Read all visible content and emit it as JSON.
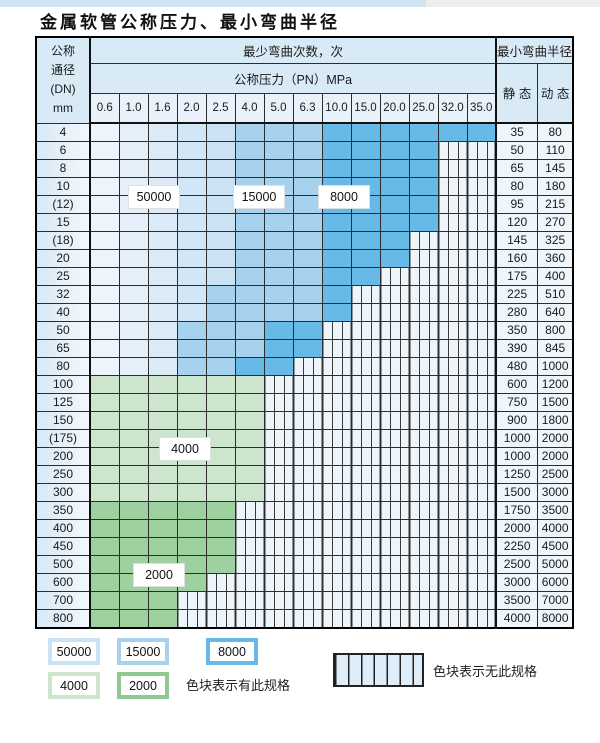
{
  "page": {
    "title": "金属软管公称压力、最小弯曲半径"
  },
  "table": {
    "header": {
      "dn": [
        "公称",
        "通径",
        "(DN)",
        "mm"
      ],
      "bend_cycles": "最少弯曲次数，次",
      "pressure": "公称压力（PN）MPa",
      "radius": "最小弯曲半径",
      "static": "静 态",
      "dynamic": "动 态",
      "pressures": [
        "0.6",
        "1.0",
        "1.6",
        "2.0",
        "2.5",
        "4.0",
        "5.0",
        "6.3",
        "10.0",
        "15.0",
        "20.0",
        "25.0",
        "32.0",
        "35.0"
      ]
    },
    "rows": [
      {
        "dn": "4",
        "pattern": "LLLLLMMMDDDDDD",
        "static": "35",
        "dynamic": "80"
      },
      {
        "dn": "6",
        "pattern": "LLLLLMMMDDDD..",
        "static": "50",
        "dynamic": "110"
      },
      {
        "dn": "8",
        "pattern": "LLLLLMMMDDDD..",
        "static": "65",
        "dynamic": "145"
      },
      {
        "dn": "10",
        "pattern": "LLLLLMMMDDDD..",
        "static": "80",
        "dynamic": "180"
      },
      {
        "dn": "(12)",
        "pattern": "LLLLLMMMDDDD..",
        "static": "95",
        "dynamic": "215"
      },
      {
        "dn": "15",
        "pattern": "LLLLLMMMDDDD..",
        "static": "120",
        "dynamic": "270"
      },
      {
        "dn": "(18)",
        "pattern": "LLLLLMMMDDD...",
        "static": "145",
        "dynamic": "325"
      },
      {
        "dn": "20",
        "pattern": "LLLLLMMMDDD...",
        "static": "160",
        "dynamic": "360"
      },
      {
        "dn": "25",
        "pattern": "LLLLLMMMDD....",
        "static": "175",
        "dynamic": "400"
      },
      {
        "dn": "32",
        "pattern": "LLLLMMMMD.....",
        "static": "225",
        "dynamic": "510"
      },
      {
        "dn": "40",
        "pattern": "LLLLMMMMD.....",
        "static": "280",
        "dynamic": "640"
      },
      {
        "dn": "50",
        "pattern": "LLLMMMDD......",
        "static": "350",
        "dynamic": "800"
      },
      {
        "dn": "65",
        "pattern": "LLLMMMDD......",
        "static": "390",
        "dynamic": "845"
      },
      {
        "dn": "80",
        "pattern": "LLLMMDD.......",
        "static": "480",
        "dynamic": "1000"
      },
      {
        "dn": "100",
        "pattern": "GGGGGG........",
        "static": "600",
        "dynamic": "1200"
      },
      {
        "dn": "125",
        "pattern": "GGGGGG........",
        "static": "750",
        "dynamic": "1500"
      },
      {
        "dn": "150",
        "pattern": "GGGGGG........",
        "static": "900",
        "dynamic": "1800"
      },
      {
        "dn": "(175)",
        "pattern": "GGGGGG........",
        "static": "1000",
        "dynamic": "2000"
      },
      {
        "dn": "200",
        "pattern": "GGGGGG........",
        "static": "1000",
        "dynamic": "2000"
      },
      {
        "dn": "250",
        "pattern": "GGGGGG........",
        "static": "1250",
        "dynamic": "2500"
      },
      {
        "dn": "300",
        "pattern": "GGGGGG........",
        "static": "1500",
        "dynamic": "3000"
      },
      {
        "dn": "350",
        "pattern": "HHHHH.........",
        "static": "1750",
        "dynamic": "3500"
      },
      {
        "dn": "400",
        "pattern": "HHHHH.........",
        "static": "2000",
        "dynamic": "4000"
      },
      {
        "dn": "450",
        "pattern": "HHHHH.........",
        "static": "2250",
        "dynamic": "4500"
      },
      {
        "dn": "500",
        "pattern": "HHHHH.........",
        "static": "2500",
        "dynamic": "5000"
      },
      {
        "dn": "600",
        "pattern": "HHHH..........",
        "static": "3000",
        "dynamic": "6000"
      },
      {
        "dn": "700",
        "pattern": "HHH...........",
        "static": "3500",
        "dynamic": "7000"
      },
      {
        "dn": "800",
        "pattern": "HHH...........",
        "static": "4000",
        "dynamic": "8000"
      }
    ],
    "overlays": [
      {
        "label": "50000"
      },
      {
        "label": "15000"
      },
      {
        "label": "8000"
      },
      {
        "label": "4000"
      },
      {
        "label": "2000"
      }
    ],
    "pattern_legend": {
      "L": "50000 cycles zone (light blue)",
      "M": "15000 cycles zone (medium blue)",
      "D": "8000 cycles zone (dark blue)",
      "G": "4000 cycles zone (light green)",
      "H": "2000 cycles zone (medium green)",
      ".": "no specification (hatched)"
    }
  },
  "legend": {
    "swatches": [
      {
        "label": "50000",
        "color": "#c9e2f4"
      },
      {
        "label": "15000",
        "color": "#a6d2ee"
      },
      {
        "label": "8000",
        "color": "#67b9e7"
      },
      {
        "label": "4000",
        "color": "#cde5cd"
      },
      {
        "label": "2000",
        "color": "#8fc992"
      }
    ],
    "has_spec_text": "色块表示有此规格",
    "no_spec_text": "色块表示无此规格"
  },
  "colors": {
    "blue_light": [
      "#edf4fb",
      "#e5effa",
      "#dcebf7",
      "#d3e6f5",
      "#cbe2f3"
    ],
    "blue_mid": "#a6d2ee",
    "blue_dark": "#67b9e7",
    "green_light": "#cde5cd",
    "green_mid": "#9ed0a0",
    "hatch_bg": "#edf4fa",
    "hatch_line": "#3a3a3a",
    "header_bg": "#d9eaf7",
    "grid_line": "#2d2d2d"
  }
}
